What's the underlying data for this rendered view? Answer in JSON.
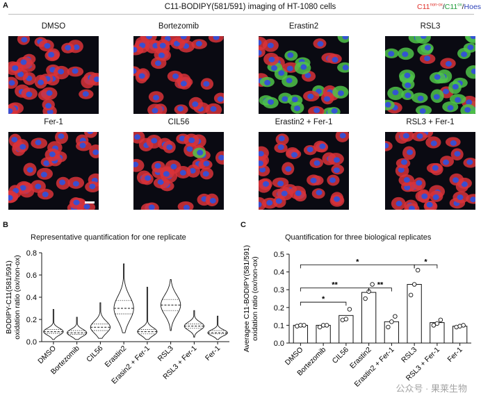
{
  "panel_a": {
    "letter": "A",
    "title": "C11-BODIPY(581/591) imaging of HT-1080 cells",
    "stain_legend": {
      "part1": "C11",
      "part1_sup": "non-ox",
      "sep1": "/",
      "part2": "C11",
      "part2_sup": "ox",
      "sep2": "/",
      "part3": "Hoescht"
    },
    "images": [
      {
        "label": "DMSO",
        "green": 0.0
      },
      {
        "label": "Bortezomib",
        "green": 0.0
      },
      {
        "label": "Erastin2",
        "green": 0.55
      },
      {
        "label": "RSL3",
        "green": 0.85
      },
      {
        "label": "Fer-1",
        "green": 0.0
      },
      {
        "label": "CIL56",
        "green": 0.08
      },
      {
        "label": "Erastin2 + Fer-1",
        "green": 0.05
      },
      {
        "label": "RSL3 + Fer-1",
        "green": 0.0
      }
    ],
    "colors": {
      "red": "#e0302a",
      "green": "#1f9d3a",
      "blue": "#2a3fb8"
    }
  },
  "panel_b": {
    "letter": "B",
    "title": "Representative quantification for one replicate"
  },
  "panel_c": {
    "letter": "C",
    "title": "Quantification for three biological replicates"
  },
  "watermark": "公众号 · 果莱生物",
  "chart_data": [
    {
      "type": "violin",
      "title": "Representative quantification for one replicate",
      "ylabel_line1": "BODIPY-C11(581/591)",
      "ylabel_line2": "oxidation ratio (ox/non-ox)",
      "ylim": [
        0,
        0.8
      ],
      "yticks": [
        "0.0",
        "0.2",
        "0.4",
        "0.6",
        "0.8"
      ],
      "categories": [
        "DMSO",
        "Bortezomib",
        "CIL56",
        "Erastin2",
        "Erasin2 + Fer-1",
        "RSL3",
        "RSL3 + Fer-1",
        "Fer-1"
      ],
      "series": [
        {
          "min": 0.02,
          "max": 0.29,
          "median": 0.09,
          "q1": 0.075,
          "q3": 0.11
        },
        {
          "min": 0.02,
          "max": 0.22,
          "median": 0.08,
          "q1": 0.065,
          "q3": 0.1
        },
        {
          "min": 0.03,
          "max": 0.35,
          "median": 0.13,
          "q1": 0.1,
          "q3": 0.16
        },
        {
          "min": 0.08,
          "max": 0.7,
          "median": 0.3,
          "q1": 0.25,
          "q3": 0.37
        },
        {
          "min": 0.02,
          "max": 0.49,
          "median": 0.09,
          "q1": 0.07,
          "q3": 0.11
        },
        {
          "min": 0.1,
          "max": 0.56,
          "median": 0.33,
          "q1": 0.28,
          "q3": 0.38
        },
        {
          "min": 0.04,
          "max": 0.28,
          "median": 0.14,
          "q1": 0.12,
          "q3": 0.16
        },
        {
          "min": 0.02,
          "max": 0.23,
          "median": 0.08,
          "q1": 0.07,
          "q3": 0.1
        }
      ]
    },
    {
      "type": "bar",
      "title": "Quantification for three biological replicates",
      "ylabel_line1": "Averagee C11-BODIPY(581/591)",
      "ylabel_line2": "oxidation ratio (ox/non-ox)",
      "ylim": [
        0,
        0.5
      ],
      "yticks": [
        "0.0",
        "0.1",
        "0.2",
        "0.3",
        "0.4",
        "0.5"
      ],
      "categories": [
        "DMSO",
        "Bortezomib",
        "CIL56",
        "Erastin2",
        "Erastin2 + Fer-1",
        "RSL3",
        "RSL3 + Fer-1",
        "Fer-1"
      ],
      "values": [
        0.1,
        0.1,
        0.155,
        0.285,
        0.12,
        0.33,
        0.115,
        0.095
      ],
      "points": [
        [
          0.095,
          0.1,
          0.1
        ],
        [
          0.09,
          0.1,
          0.1
        ],
        [
          0.13,
          0.135,
          0.19
        ],
        [
          0.25,
          0.29,
          0.33
        ],
        [
          0.09,
          0.12,
          0.15
        ],
        [
          0.27,
          0.33,
          0.41
        ],
        [
          0.1,
          0.11,
          0.13
        ],
        [
          0.09,
          0.095,
          0.1
        ]
      ],
      "significance": [
        {
          "from": 0,
          "to": 2,
          "y": 0.23,
          "label": "*"
        },
        {
          "from": 0,
          "to": 3,
          "y": 0.31,
          "label": "**"
        },
        {
          "from": 3,
          "to": 4,
          "y": 0.31,
          "label": "**"
        },
        {
          "from": 0,
          "to": 5,
          "y": 0.44,
          "label": "*"
        },
        {
          "from": 5,
          "to": 6,
          "y": 0.44,
          "label": "*"
        }
      ]
    }
  ]
}
